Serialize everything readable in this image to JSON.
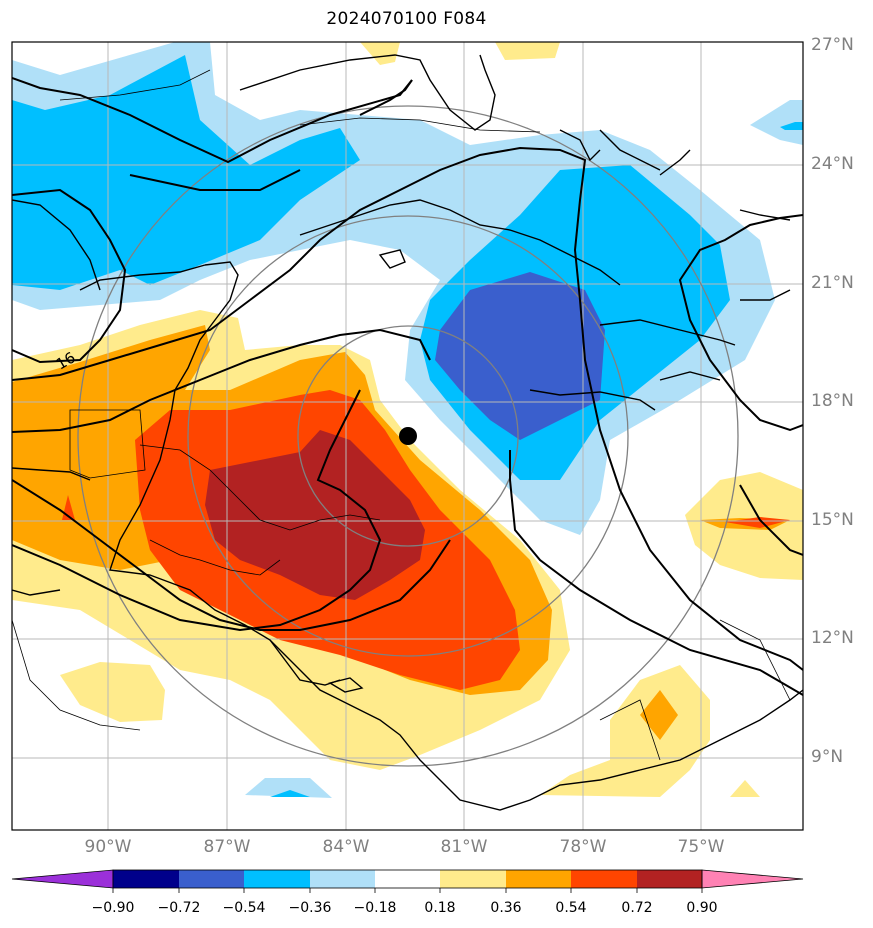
{
  "title": "2024070100 F084",
  "lat_labels": [
    "27°N",
    "24°N",
    "21°N",
    "18°N",
    "15°N",
    "12°N",
    "9°N"
  ],
  "lon_labels": [
    "90°W",
    "87°W",
    "84°W",
    "81°W",
    "78°W",
    "75°W"
  ],
  "contour_label": "16",
  "colorbar": {
    "ticks": [
      "−0.90",
      "−0.72",
      "−0.54",
      "−0.36",
      "−0.18",
      "0.18",
      "0.36",
      "0.54",
      "0.72",
      "0.90"
    ],
    "colors": [
      "#9b30d9",
      "#00008b",
      "#3a5fcd",
      "#00bfff",
      "#b0e0f8",
      "#ffffff",
      "#ffeb8c",
      "#ffa500",
      "#ff4500",
      "#b22222",
      "#ff82b4"
    ]
  },
  "storm_marker": "black-dot"
}
